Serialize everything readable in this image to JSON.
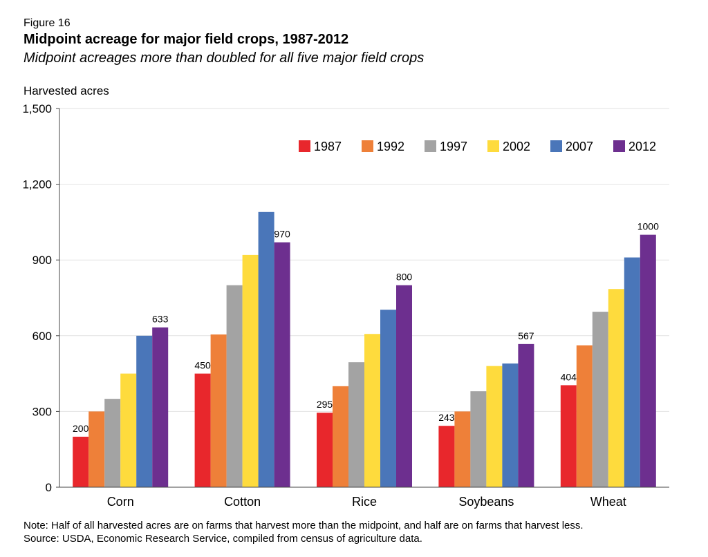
{
  "figure_label": "Figure 16",
  "note": "Note: Half of all harvested acres are on farms that harvest more than the midpoint, and half are on farms that harvest less.",
  "source": "Source: USDA, Economic Research Service, compiled from census of agriculture data.",
  "chart_data": {
    "type": "bar",
    "title": "Midpoint acreage for major field crops, 1987-2012",
    "subtitle": "Midpoint acreages more than doubled for all five major field crops",
    "xlabel": "",
    "ylabel": "Harvested acres",
    "ylim": [
      0,
      1500
    ],
    "yticks": [
      0,
      300,
      600,
      900,
      1200,
      1500
    ],
    "ytick_labels": [
      "0",
      "300",
      "600",
      "900",
      "1,200",
      "1,500"
    ],
    "grid": true,
    "legend_position": "top-right",
    "categories": [
      "Corn",
      "Cotton",
      "Rice",
      "Soybeans",
      "Wheat"
    ],
    "series": [
      {
        "name": "1987",
        "color": "#e8272c",
        "values": [
          200,
          450,
          295,
          243,
          404
        ]
      },
      {
        "name": "1992",
        "color": "#ee8039",
        "values": [
          300,
          605,
          400,
          300,
          562
        ]
      },
      {
        "name": "1997",
        "color": "#a3a3a3",
        "values": [
          350,
          800,
          495,
          380,
          695
        ]
      },
      {
        "name": "2002",
        "color": "#fedb3d",
        "values": [
          450,
          920,
          607,
          480,
          785
        ]
      },
      {
        "name": "2007",
        "color": "#4a76b9",
        "values": [
          600,
          1090,
          703,
          490,
          910
        ]
      },
      {
        "name": "2012",
        "color": "#6d2f8f",
        "values": [
          633,
          970,
          800,
          567,
          1000
        ]
      }
    ],
    "data_labels": [
      {
        "category": "Corn",
        "series": "1987",
        "text": "200"
      },
      {
        "category": "Corn",
        "series": "2012",
        "text": "633"
      },
      {
        "category": "Cotton",
        "series": "1987",
        "text": "450"
      },
      {
        "category": "Cotton",
        "series": "2012",
        "text": "970"
      },
      {
        "category": "Rice",
        "series": "1987",
        "text": "295"
      },
      {
        "category": "Rice",
        "series": "2012",
        "text": "800"
      },
      {
        "category": "Soybeans",
        "series": "1987",
        "text": "243"
      },
      {
        "category": "Soybeans",
        "series": "2012",
        "text": "567"
      },
      {
        "category": "Wheat",
        "series": "1987",
        "text": "404"
      },
      {
        "category": "Wheat",
        "series": "2012",
        "text": "1000"
      }
    ]
  }
}
